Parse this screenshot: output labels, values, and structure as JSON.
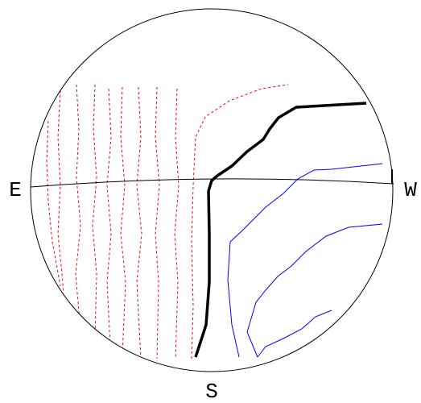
{
  "labels": {
    "east": "E",
    "west": "W",
    "south": "S"
  }
}
